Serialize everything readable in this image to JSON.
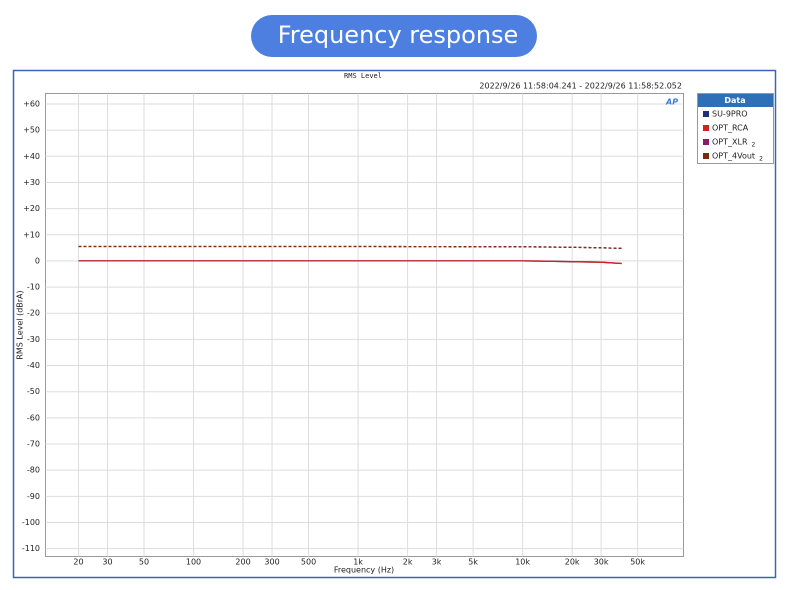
{
  "header": {
    "title": "Frequency response"
  },
  "chart_data": {
    "type": "line",
    "title": "RMS Level",
    "subtitle": "2022/9/26 11:58:04.241 -   2022/9/26 11:58:52.052",
    "x_label": "Frequency (Hz)",
    "y_label": "RMS Level (dBrA)",
    "xscale": "log",
    "grid": true,
    "legend": {
      "title": "Data",
      "position": "outside-right"
    },
    "xlim": [
      12.6,
      95000
    ],
    "ylim": [
      -113,
      64
    ],
    "xticks": [
      20,
      30,
      50,
      100,
      200,
      300,
      500,
      {
        "value": 1000,
        "label": "1k"
      },
      {
        "value": 2000,
        "label": "2k"
      },
      {
        "value": 3000,
        "label": "3k"
      },
      {
        "value": 5000,
        "label": "5k"
      },
      {
        "value": 10000,
        "label": "10k"
      },
      {
        "value": 20000,
        "label": "20k"
      },
      {
        "value": 30000,
        "label": "30k"
      },
      {
        "value": 50000,
        "label": "50k"
      }
    ],
    "yticks": [
      {
        "value": 60,
        "label": "+60"
      },
      {
        "value": 50,
        "label": "+50"
      },
      {
        "value": 40,
        "label": "+40"
      },
      {
        "value": 30,
        "label": "+30"
      },
      {
        "value": 20,
        "label": "+20"
      },
      {
        "value": 10,
        "label": "+10"
      },
      0,
      -10,
      -20,
      -30,
      -40,
      -50,
      -60,
      -70,
      -80,
      -90,
      -100,
      -110
    ],
    "x": [
      20,
      50,
      100,
      1000,
      10000,
      14000,
      20000,
      30000,
      40000
    ],
    "series": [
      {
        "name": "SU-9PRO",
        "color": "#1f2f7a",
        "dashed": false,
        "values": [
          0,
          0,
          0,
          0,
          0,
          -0.1,
          -0.3,
          -0.5,
          -1.0
        ]
      },
      {
        "name": "OPT_RCA",
        "color": "#d42020",
        "dashed": false,
        "values": [
          0,
          0,
          0,
          0,
          0,
          -0.1,
          -0.3,
          -0.5,
          -1.0
        ]
      },
      {
        "name": "OPT_XLR",
        "channel": "2",
        "color": "#8a1a6a",
        "dashed": true,
        "values": [
          5.5,
          5.5,
          5.5,
          5.5,
          5.4,
          5.3,
          5.2,
          5.0,
          4.8
        ]
      },
      {
        "name": "OPT_4Vout",
        "channel": "2",
        "color": "#7a2a10",
        "dashed": true,
        "values": [
          5.5,
          5.5,
          5.5,
          5.5,
          5.4,
          5.3,
          5.2,
          5.0,
          4.8
        ]
      }
    ]
  }
}
